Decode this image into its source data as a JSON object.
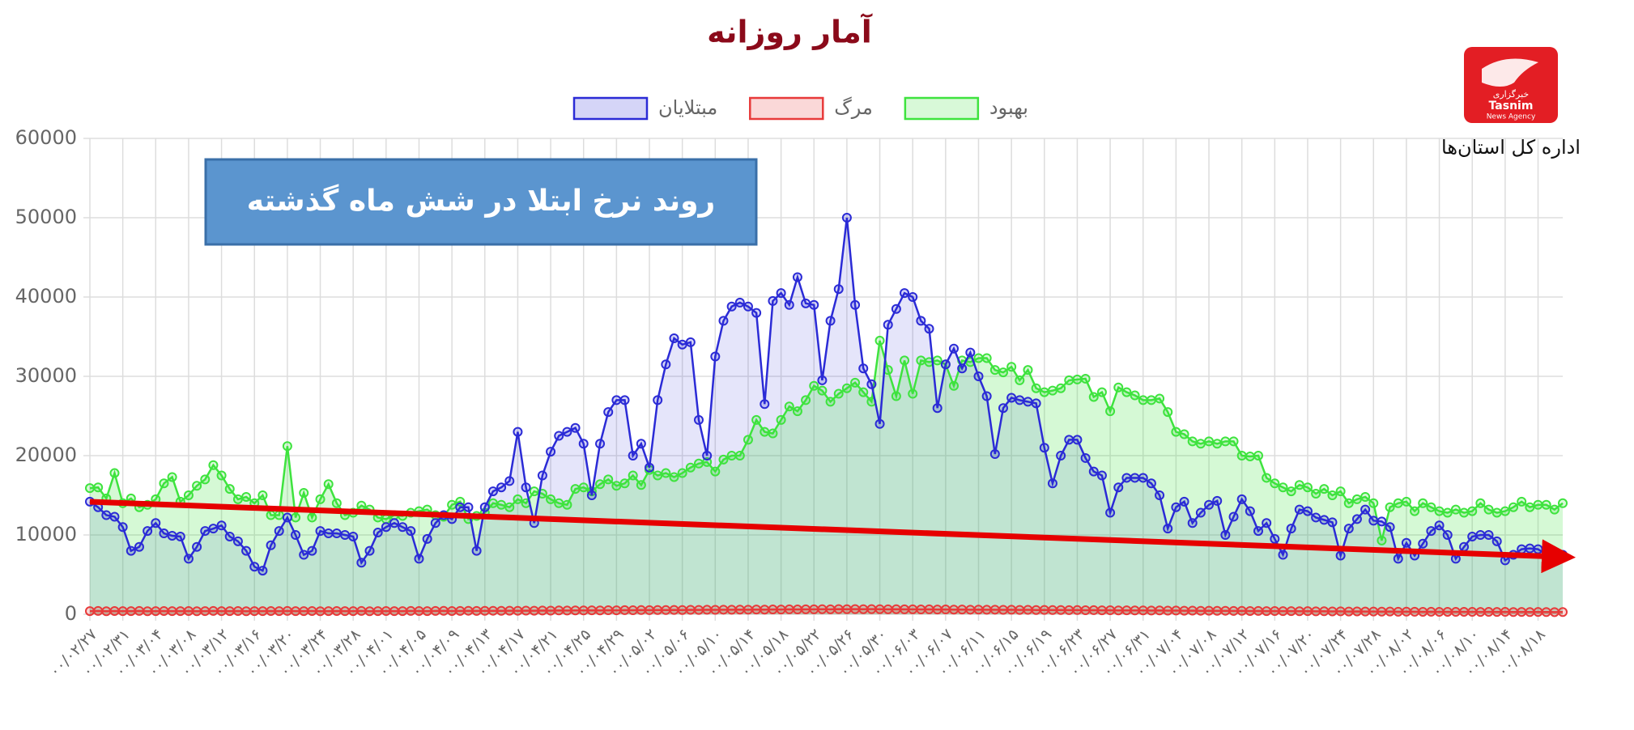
{
  "chart_data": {
    "type": "line",
    "title": "آمار روزانه",
    "annotation": "روند نرخ ابتلا در شش ماه گذشته",
    "categories": [
      "۰۰/۰۲/۲۷",
      null,
      null,
      null,
      "۰۰/۰۲/۳۱",
      null,
      null,
      null,
      "۰۰/۰۳/۰۴",
      null,
      null,
      null,
      "۰۰/۰۳/۰۸",
      null,
      null,
      null,
      "۰۰/۰۳/۱۲",
      null,
      null,
      null,
      "۰۰/۰۳/۱۶",
      null,
      null,
      null,
      "۰۰/۰۳/۲۰",
      null,
      null,
      null,
      "۰۰/۰۳/۲۴",
      null,
      null,
      null,
      "۰۰/۰۳/۲۸",
      null,
      null,
      null,
      "۰۰/۰۴/۰۱",
      null,
      null,
      null,
      "۰۰/۰۴/۰۵",
      null,
      null,
      null,
      "۰۰/۰۴/۰۹",
      null,
      null,
      null,
      "۰۰/۰۴/۱۳",
      null,
      null,
      null,
      "۰۰/۰۴/۱۷",
      null,
      null,
      null,
      "۰۰/۰۴/۲۱",
      null,
      null,
      null,
      "۰۰/۰۴/۲۵",
      null,
      null,
      null,
      "۰۰/۰۴/۲۹",
      null,
      null,
      null,
      "۰۰/۰۵/۰۲",
      null,
      null,
      null,
      "۰۰/۰۵/۰۶",
      null,
      null,
      null,
      "۰۰/۰۵/۱۰",
      null,
      null,
      null,
      "۰۰/۰۵/۱۴",
      null,
      null,
      null,
      "۰۰/۰۵/۱۸",
      null,
      null,
      null,
      "۰۰/۰۵/۲۲",
      null,
      null,
      null,
      "۰۰/۰۵/۲۶",
      null,
      null,
      null,
      "۰۰/۰۵/۳۰",
      null,
      null,
      null,
      "۰۰/۰۶/۰۳",
      null,
      null,
      null,
      "۰۰/۰۶/۰۷",
      null,
      null,
      null,
      "۰۰/۰۶/۱۱",
      null,
      null,
      null,
      "۰۰/۰۶/۱۵",
      null,
      null,
      null,
      "۰۰/۰۶/۱۹",
      null,
      null,
      null,
      "۰۰/۰۶/۲۳",
      null,
      null,
      null,
      "۰۰/۰۶/۲۷",
      null,
      null,
      null,
      "۰۰/۰۶/۳۱",
      null,
      null,
      null,
      "۰۰/۰۷/۰۴",
      null,
      null,
      null,
      "۰۰/۰۷/۰۸",
      null,
      null,
      null,
      "۰۰/۰۷/۱۲",
      null,
      null,
      null,
      "۰۰/۰۷/۱۶",
      null,
      null,
      null,
      "۰۰/۰۷/۲۰",
      null,
      null,
      null,
      "۰۰/۰۷/۲۴",
      null,
      null,
      null,
      "۰۰/۰۷/۲۸",
      null,
      null,
      null,
      "۰۰/۰۸/۰۲",
      null,
      null,
      null,
      "۰۰/۰۸/۰۶",
      null,
      null,
      null,
      "۰۰/۰۸/۱۰",
      null,
      null,
      null,
      "۰۰/۰۸/۱۴",
      null,
      null,
      null,
      "۰۰/۰۸/۱۸",
      null,
      null,
      null
    ],
    "series": [
      {
        "name": "مبتلایان",
        "color": "#2b2bd6",
        "values": [
          14200,
          13500,
          12500,
          12300,
          11000,
          8000,
          8500,
          10500,
          11500,
          10200,
          9900,
          9800,
          7000,
          8500,
          10500,
          10800,
          11200,
          9800,
          9200,
          8000,
          6000,
          5500,
          8700,
          10500,
          12200,
          10000,
          7500,
          8000,
          10500,
          10200,
          10200,
          10000,
          9800,
          6500,
          8000,
          10300,
          11000,
          11500,
          11000,
          10500,
          7000,
          9500,
          11500,
          12500,
          12000,
          13500,
          13500,
          8000,
          13500,
          15500,
          16000,
          16800,
          23000,
          16000,
          11500,
          17500,
          20500,
          22500,
          23000,
          23500,
          21500,
          15000,
          21500,
          25500,
          27000,
          27000,
          20000,
          21500,
          18500,
          27000,
          31500,
          34800,
          34000,
          34300,
          24500,
          20000,
          32500,
          37000,
          38800,
          39300,
          38800,
          38000,
          26500,
          39500,
          40500,
          39000,
          42500,
          39200,
          39000,
          29500,
          37000,
          41000,
          50000,
          39000,
          31000,
          29000,
          24000,
          36500,
          38500,
          40500,
          40000,
          37000,
          36000,
          26000,
          31500,
          33500,
          31000,
          33000,
          30000,
          27500,
          20200,
          26000,
          27300,
          27000,
          26800,
          26600,
          21000,
          16500,
          20000,
          22000,
          22000,
          19700,
          18000,
          17500,
          12800,
          16000,
          17200,
          17200,
          17200,
          16500,
          15000,
          10800,
          13500,
          14200,
          11500,
          12800,
          13800,
          14300,
          10000,
          12300,
          14500,
          13000,
          10500,
          11500,
          9500,
          7500,
          10800,
          13200,
          13000,
          12200,
          11900,
          11600,
          7400,
          10800,
          12000,
          13200,
          11800,
          11700,
          11000,
          7000,
          9000,
          7400,
          8900,
          10500,
          11200,
          10000,
          7000,
          8500,
          9800,
          10000,
          10000,
          9200,
          6800,
          7500,
          8200,
          8300,
          8200,
          7500,
          7800,
          7500
        ]
      },
      {
        "name": "مرگ",
        "color": "#e83a3a",
        "values": [
          400,
          420,
          380,
          410,
          390,
          400,
          420,
          380,
          400,
          410,
          390,
          400,
          410,
          380,
          400,
          420,
          390,
          400,
          410,
          380,
          400,
          390,
          410,
          400,
          420,
          390,
          400,
          410,
          380,
          400,
          410,
          390,
          400,
          420,
          380,
          400,
          410,
          390,
          400,
          420,
          410,
          400,
          420,
          430,
          410,
          420,
          440,
          420,
          430,
          440,
          430,
          450,
          440,
          460,
          450,
          470,
          460,
          480,
          470,
          490,
          480,
          500,
          490,
          510,
          500,
          520,
          510,
          530,
          520,
          540,
          530,
          550,
          540,
          560,
          550,
          570,
          560,
          580,
          570,
          590,
          580,
          600,
          590,
          610,
          600,
          620,
          610,
          630,
          620,
          640,
          630,
          650,
          640,
          650,
          640,
          650,
          640,
          630,
          640,
          620,
          630,
          610,
          620,
          600,
          610,
          590,
          600,
          580,
          590,
          570,
          580,
          560,
          570,
          550,
          560,
          540,
          550,
          530,
          540,
          520,
          530,
          510,
          520,
          500,
          510,
          490,
          500,
          480,
          490,
          470,
          480,
          460,
          470,
          450,
          460,
          440,
          450,
          430,
          440,
          420,
          430,
          410,
          420,
          400,
          410,
          390,
          400,
          380,
          390,
          370,
          380,
          360,
          370,
          350,
          360,
          340,
          350,
          330,
          340,
          320,
          330,
          320,
          310,
          320,
          300,
          310,
          300,
          310,
          300,
          290,
          300,
          290,
          300,
          280,
          290,
          280,
          290,
          280,
          270,
          280
        ]
      },
      {
        "name": "بهبود",
        "color": "#3ee33e",
        "values": [
          15900,
          16000,
          14600,
          17800,
          14000,
          14600,
          13500,
          13800,
          14500,
          16500,
          17300,
          14200,
          15000,
          16200,
          17000,
          18800,
          17500,
          15800,
          14500,
          14800,
          14000,
          15000,
          12500,
          12500,
          21200,
          12200,
          15300,
          12200,
          14500,
          16400,
          14000,
          12500,
          12800,
          13700,
          13200,
          12200,
          12000,
          12500,
          12400,
          12800,
          13000,
          13200,
          12500,
          12300,
          13800,
          14200,
          12000,
          12400,
          12800,
          14000,
          13800,
          13500,
          14500,
          14000,
          15500,
          15200,
          14500,
          14000,
          13800,
          15800,
          16000,
          15500,
          16400,
          17000,
          16200,
          16500,
          17500,
          16300,
          18200,
          17500,
          17800,
          17300,
          17800,
          18500,
          19000,
          19200,
          18000,
          19500,
          20000,
          20000,
          22000,
          24500,
          23000,
          22800,
          24500,
          26200,
          25600,
          27000,
          28800,
          28200,
          26800,
          27800,
          28500,
          29200,
          28000,
          26800,
          34500,
          30800,
          27500,
          32000,
          27800,
          32000,
          31800,
          32000,
          31500,
          28800,
          32000,
          31800,
          32300,
          32300,
          30800,
          30500,
          31200,
          29500,
          30800,
          28500,
          28000,
          28200,
          28500,
          29500,
          29600,
          29700,
          27400,
          28000,
          25600,
          28600,
          28000,
          27600,
          27000,
          27000,
          27200,
          25500,
          23000,
          22700,
          21800,
          21500,
          21800,
          21500,
          21800,
          21800,
          20000,
          19900,
          20000,
          17200,
          16500,
          16000,
          15500,
          16300,
          16000,
          15200,
          15800,
          15000,
          15500,
          14000,
          14500,
          14800,
          14000,
          9300,
          13500,
          14000,
          14200,
          13000,
          14000,
          13500,
          13000,
          12800,
          13200,
          12800,
          13000,
          14000,
          13200,
          12800,
          13000,
          13500,
          14200,
          13500,
          13800,
          13800,
          13200,
          14000
        ]
      }
    ],
    "ylim": [
      0,
      60000
    ],
    "yticks": [
      0,
      10000,
      20000,
      30000,
      40000,
      50000,
      60000
    ],
    "grid": true,
    "legend": "top"
  },
  "logo": {
    "name": "Tasnim",
    "subtitle": "News Agency",
    "label": "خبرگزاری",
    "caption": "اداره کل استان‌ها"
  }
}
